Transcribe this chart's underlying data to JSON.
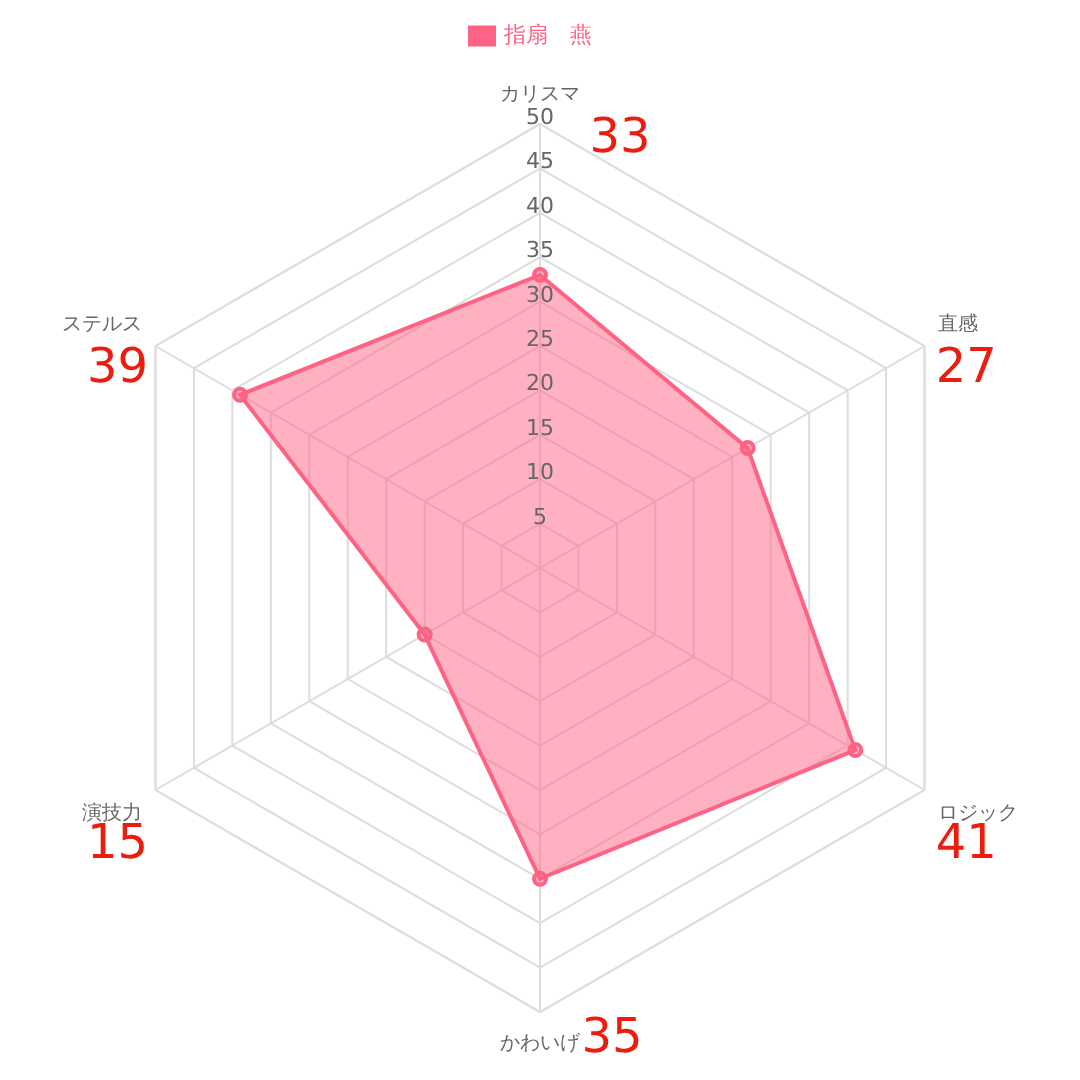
{
  "chart_data": {
    "type": "radar",
    "categories": [
      "カリスマ",
      "直感",
      "ロジック",
      "かわいげ",
      "演技力",
      "ステルス"
    ],
    "series": [
      {
        "name": "指扇　燕",
        "color": "#ff6384",
        "values": [
          33,
          27,
          41,
          35,
          15,
          39
        ]
      }
    ],
    "ylim": [
      0,
      50
    ],
    "yticks": [
      5,
      10,
      15,
      20,
      25,
      30,
      35,
      40,
      45,
      50
    ],
    "grid": true,
    "legend": "top",
    "marker": "circle",
    "annotations": [
      "33",
      "27",
      "41",
      "35",
      "15",
      "39"
    ]
  }
}
